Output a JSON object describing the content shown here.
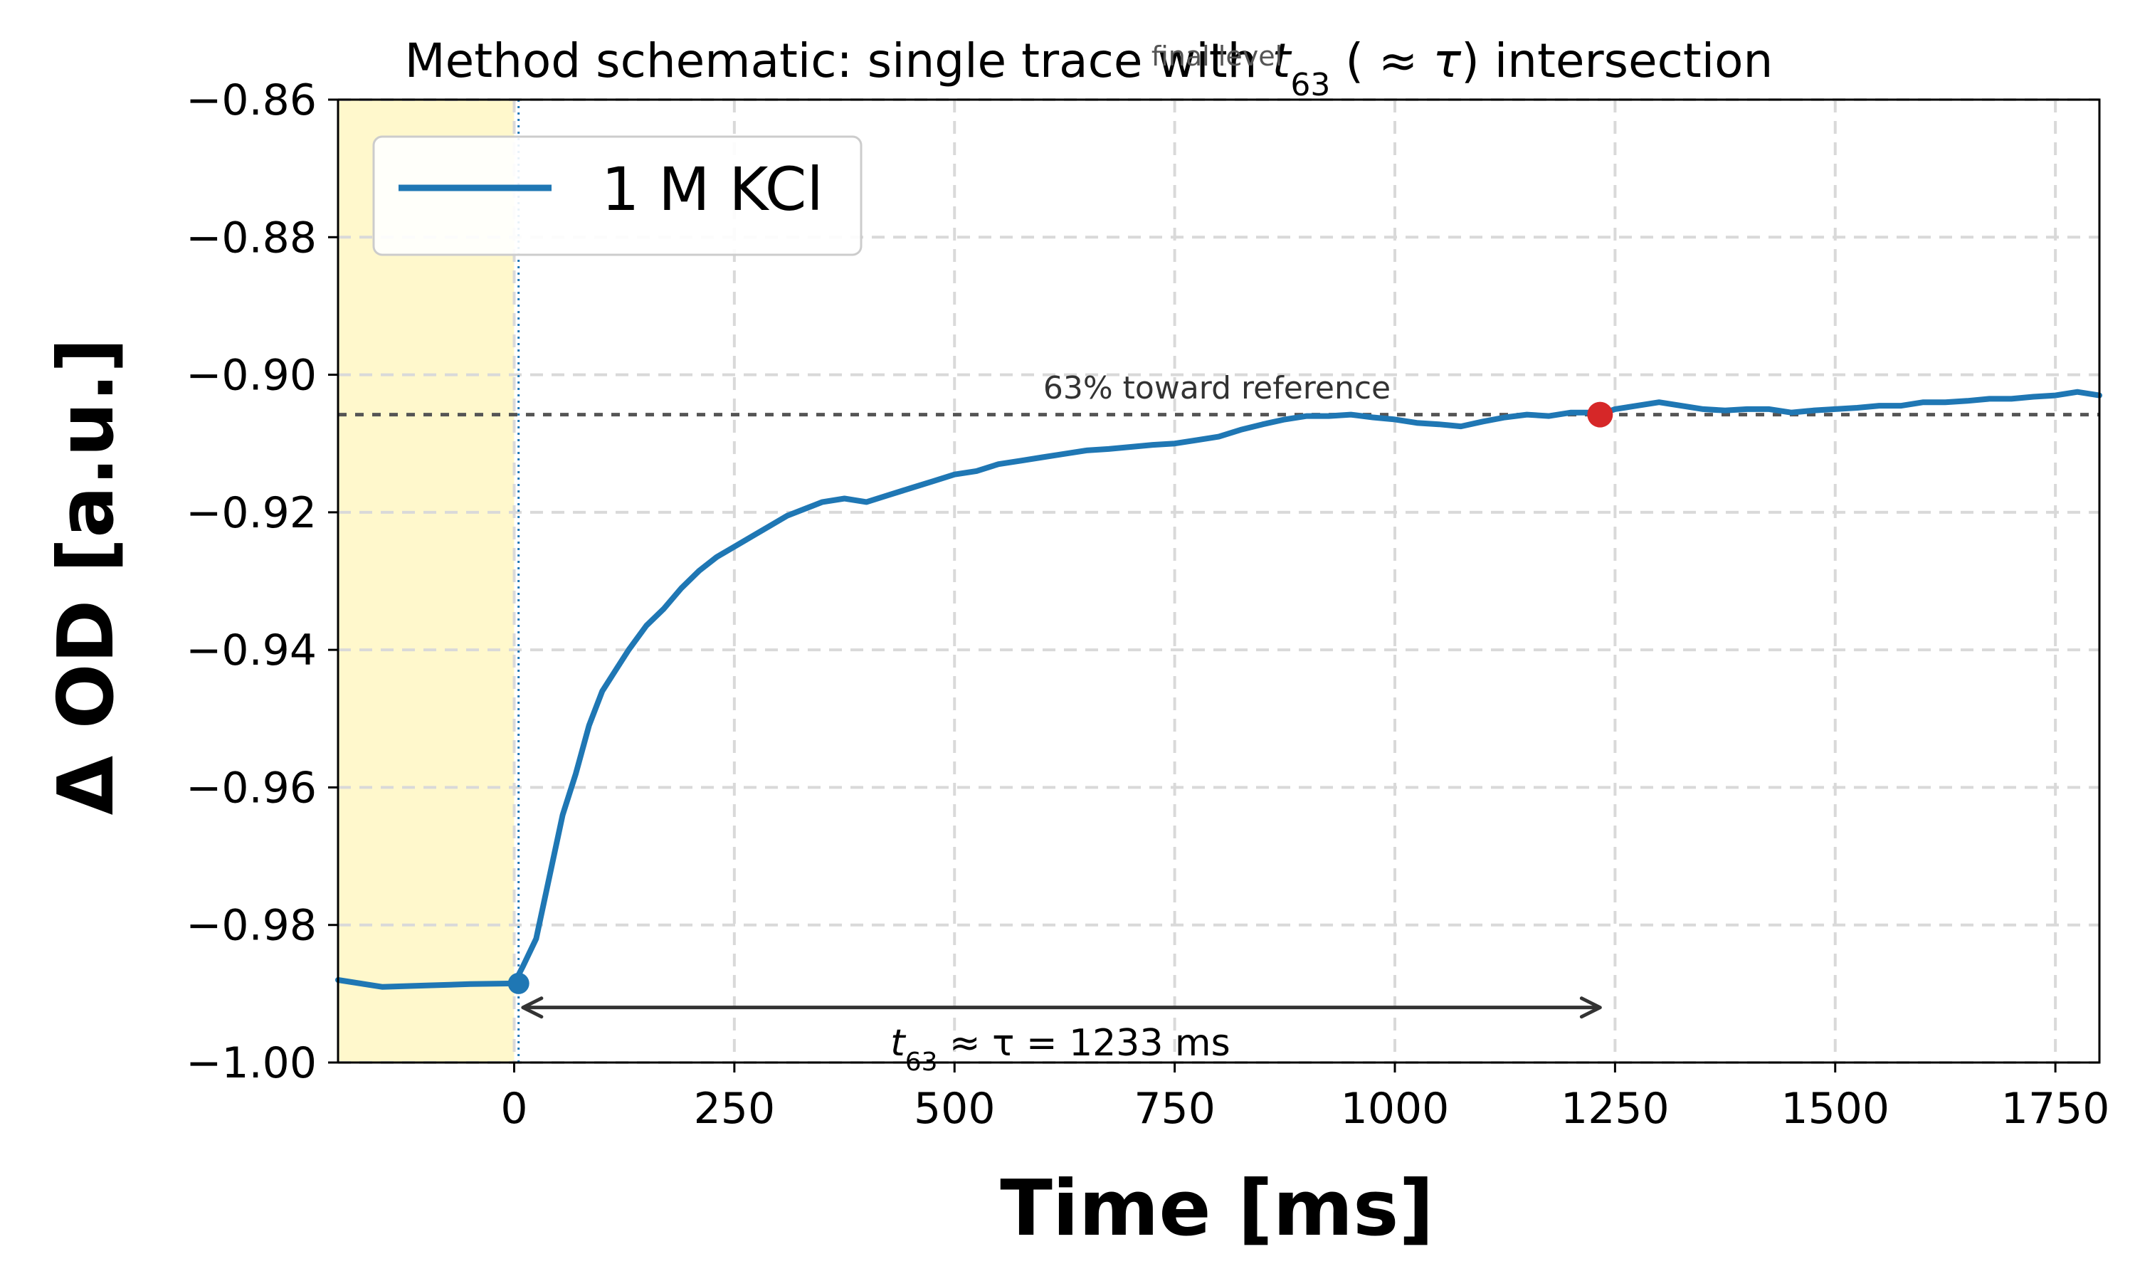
{
  "chart_data": {
    "type": "line",
    "title_parts": {
      "prefix": "Method schematic: single trace with ",
      "t_symbol": "t",
      "t_subscript": "63",
      "middle": " ( ≈ ",
      "tau_symbol": "τ",
      "suffix": ") intersection"
    },
    "xlabel": "Time [ms]",
    "ylabel": "Δ OD [a.u.]",
    "xlim": [
      -200,
      1800
    ],
    "ylim": [
      -1.0,
      -0.86
    ],
    "xticks": [
      0,
      250,
      500,
      750,
      1000,
      1250,
      1500,
      1750
    ],
    "xtick_labels": [
      "0",
      "250",
      "500",
      "750",
      "1000",
      "1250",
      "1500",
      "1750"
    ],
    "yticks": [
      -0.86,
      -0.88,
      -0.9,
      -0.92,
      -0.94,
      -0.96,
      -0.98,
      -1.0
    ],
    "ytick_labels": [
      "−0.86",
      "−0.88",
      "−0.90",
      "−0.92",
      "−0.94",
      "−0.96",
      "−0.98",
      "−1.00"
    ],
    "grid": true,
    "legend_position": "top-left",
    "series": [
      {
        "name": "1 M KCl",
        "color": "#1f77b4",
        "x": [
          -200,
          -150,
          -100,
          -50,
          0,
          10,
          25,
          40,
          55,
          70,
          85,
          100,
          115,
          130,
          150,
          170,
          190,
          210,
          230,
          250,
          270,
          290,
          310,
          330,
          350,
          375,
          400,
          425,
          450,
          475,
          500,
          525,
          550,
          575,
          600,
          625,
          650,
          675,
          700,
          725,
          750,
          775,
          800,
          825,
          850,
          875,
          900,
          925,
          950,
          975,
          1000,
          1025,
          1050,
          1075,
          1100,
          1125,
          1150,
          1175,
          1200,
          1220,
          1233,
          1250,
          1275,
          1300,
          1325,
          1350,
          1375,
          1400,
          1425,
          1450,
          1475,
          1500,
          1525,
          1550,
          1575,
          1600,
          1625,
          1650,
          1675,
          1700,
          1725,
          1750,
          1775,
          1800
        ],
        "y": [
          -0.988,
          -0.989,
          -0.9888,
          -0.9886,
          -0.9885,
          -0.986,
          -0.982,
          -0.973,
          -0.964,
          -0.958,
          -0.951,
          -0.946,
          -0.943,
          -0.94,
          -0.9365,
          -0.934,
          -0.931,
          -0.9285,
          -0.9265,
          -0.925,
          -0.9235,
          -0.922,
          -0.9205,
          -0.9195,
          -0.9185,
          -0.918,
          -0.9185,
          -0.9175,
          -0.9165,
          -0.9155,
          -0.9145,
          -0.914,
          -0.913,
          -0.9125,
          -0.912,
          -0.9115,
          -0.911,
          -0.9108,
          -0.9105,
          -0.9102,
          -0.91,
          -0.9095,
          -0.909,
          -0.908,
          -0.9072,
          -0.9065,
          -0.906,
          -0.906,
          -0.9058,
          -0.9062,
          -0.9065,
          -0.907,
          -0.9072,
          -0.9075,
          -0.9068,
          -0.9062,
          -0.9058,
          -0.906,
          -0.9055,
          -0.9055,
          -0.9058,
          -0.905,
          -0.9045,
          -0.904,
          -0.9045,
          -0.905,
          -0.9052,
          -0.905,
          -0.905,
          -0.9055,
          -0.9052,
          -0.905,
          -0.9048,
          -0.9045,
          -0.9045,
          -0.904,
          -0.904,
          -0.9038,
          -0.9035,
          -0.9035,
          -0.9032,
          -0.903,
          -0.9025,
          -0.903
        ]
      }
    ],
    "baseline_region": {
      "x_from": -200,
      "x_to": 0,
      "color": "#fff8cc"
    },
    "start_marker": {
      "x": 5,
      "y": -0.9885,
      "color": "#1f77b4"
    },
    "t63_marker": {
      "x": 1233,
      "y": -0.9058,
      "color": "#d62728"
    },
    "start_vline": {
      "x": 5,
      "color": "#1f77b4"
    },
    "reference_line": {
      "y": -0.9058,
      "label": "63% toward reference",
      "color": "#555555"
    },
    "final_level_label": "final level",
    "t63_annotation": {
      "x_from": 10,
      "x_to": 1233,
      "y": -0.992,
      "t_symbol": "t",
      "t_subscript": "63",
      "rest": " ≈ τ = 1233 ms"
    }
  }
}
